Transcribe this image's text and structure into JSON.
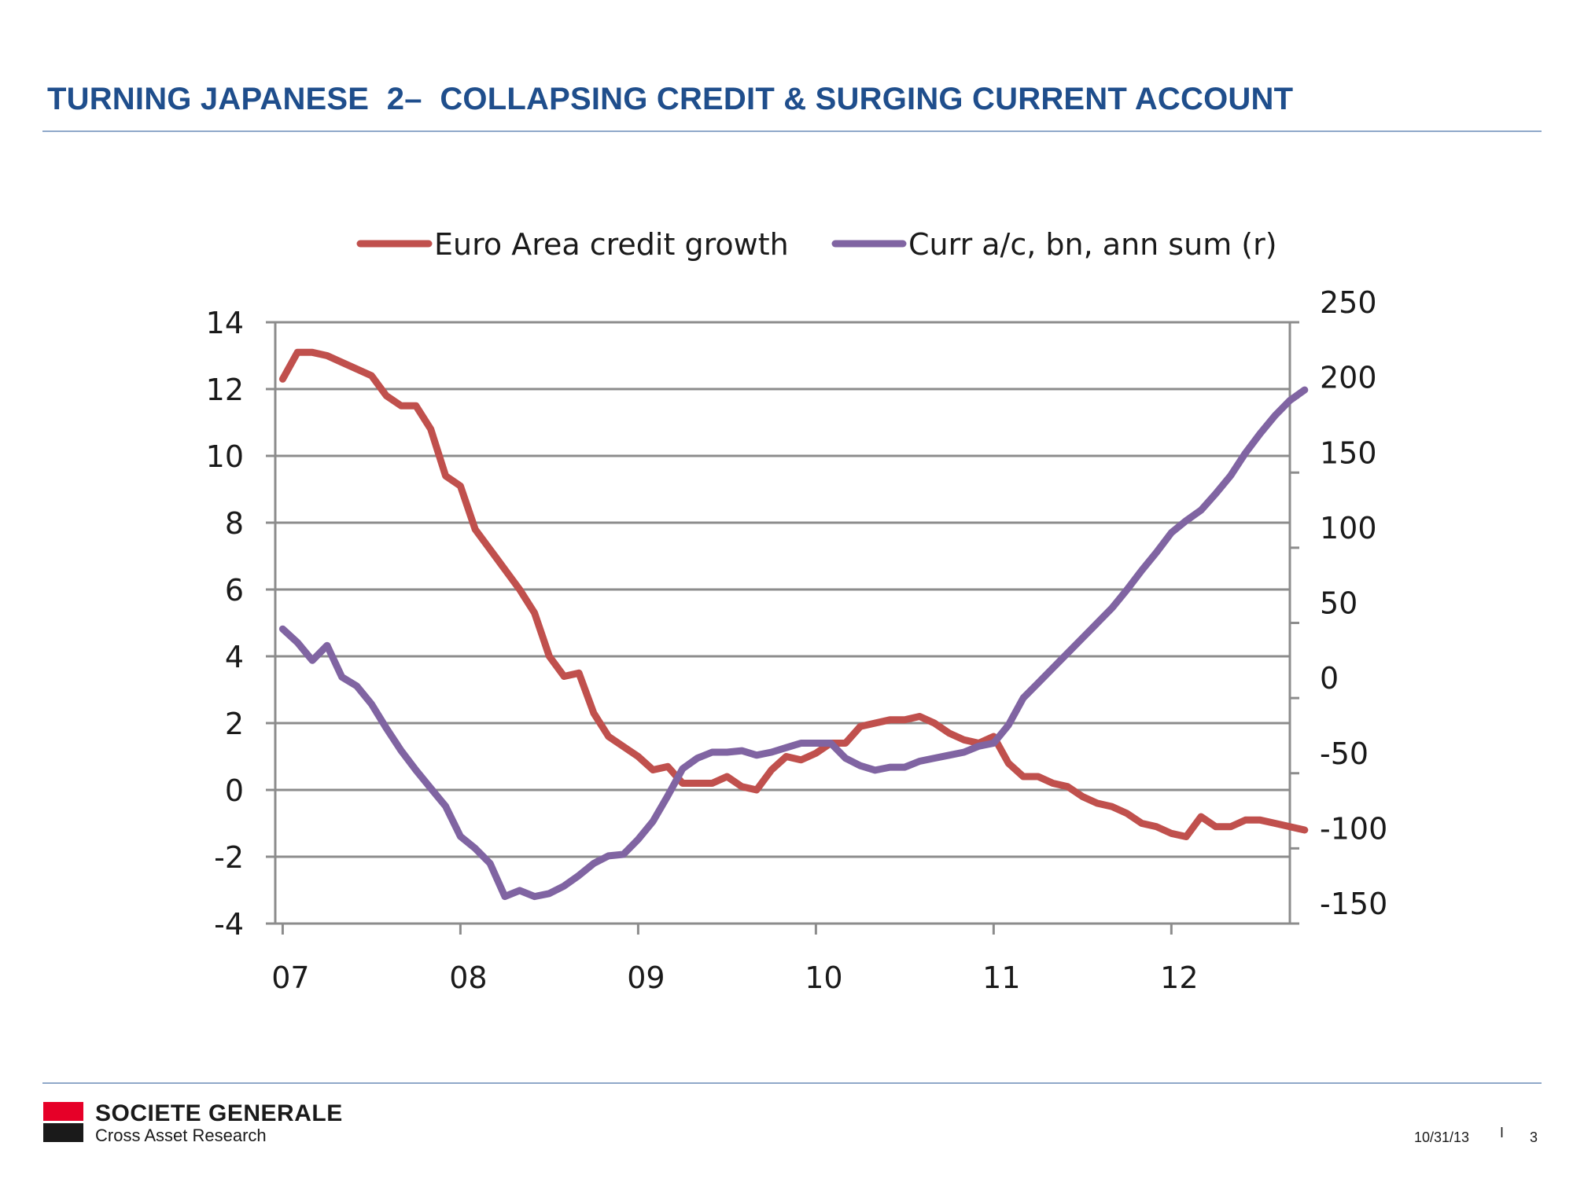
{
  "slide": {
    "title": "TURNING JAPANESE  2–  COLLAPSING CREDIT & SURGING CURRENT ACCOUNT",
    "date": "10/31/13",
    "separator": "I",
    "page_number": "3"
  },
  "brand": {
    "company": "SOCIETE GENERALE",
    "division": "Cross Asset Research",
    "logo_red": "#e60028",
    "logo_black": "#1a1a1a",
    "accent": "#1f4e8c"
  },
  "chart_data": {
    "type": "line",
    "title": "",
    "legend_position": "top",
    "grid": true,
    "x_ticks": [
      "07",
      "08",
      "09",
      "10",
      "11",
      "12"
    ],
    "x_tick_positions": [
      0,
      12,
      24,
      36,
      48,
      60
    ],
    "xlim": [
      -0.5,
      68
    ],
    "left_axis": {
      "ylim": [
        -4,
        14
      ],
      "ticks": [
        -4,
        -2,
        0,
        2,
        4,
        6,
        8,
        10,
        12,
        14
      ],
      "tick_labels": [
        "-4",
        "-2",
        "0",
        "2",
        "4",
        "6",
        "8",
        "10",
        "12",
        "14"
      ]
    },
    "right_axis": {
      "ylim": [
        -150,
        250
      ],
      "ticks": [
        -150,
        -100,
        -50,
        0,
        50,
        100,
        150,
        200,
        250
      ],
      "tick_labels": [
        "-150",
        "-100",
        "-50",
        "0",
        "50",
        "100",
        "150",
        "200",
        "250"
      ]
    },
    "series": [
      {
        "name": "Euro Area credit growth",
        "axis": "left",
        "color": "#c0504d",
        "x_start": 0,
        "values": [
          12.3,
          13.1,
          13.1,
          13.0,
          12.8,
          12.6,
          12.4,
          11.8,
          11.5,
          11.5,
          10.8,
          9.4,
          9.1,
          7.8,
          7.2,
          6.6,
          6.0,
          5.3,
          4.0,
          3.4,
          3.5,
          2.3,
          1.6,
          1.3,
          1.0,
          0.6,
          0.7,
          0.2,
          0.2,
          0.2,
          0.4,
          0.1,
          0.0,
          0.6,
          1.0,
          0.9,
          1.1,
          1.4,
          1.4,
          1.9,
          2.0,
          2.1,
          2.1,
          2.2,
          2.0,
          1.7,
          1.5,
          1.4,
          1.6,
          0.8,
          0.4,
          0.4,
          0.2,
          0.1,
          -0.2,
          -0.4,
          -0.5,
          -0.7,
          -1.0,
          -1.1,
          -1.3,
          -1.4,
          -0.8,
          -1.1,
          -1.1,
          -0.9,
          -0.9,
          -1.0,
          -1.1,
          -1.2
        ]
      },
      {
        "name": "Curr a/c, bn, ann sum (r)",
        "axis": "right",
        "color": "#8064a2",
        "x_start": 0,
        "values": [
          46,
          37,
          25,
          35,
          14,
          8,
          -4,
          -20,
          -35,
          -48,
          -60,
          -72,
          -92,
          -100,
          -110,
          -132,
          -128,
          -132,
          -130,
          -125,
          -118,
          -110,
          -105,
          -104,
          -94,
          -82,
          -65,
          -47,
          -40,
          -36,
          -36,
          -35,
          -38,
          -36,
          -33,
          -30,
          -30,
          -30,
          -40,
          -45,
          -48,
          -46,
          -46,
          -42,
          -40,
          -38,
          -36,
          -32,
          -30,
          -18,
          0,
          10,
          20,
          30,
          40,
          50,
          60,
          72,
          85,
          97,
          110,
          118,
          125,
          136,
          148,
          163,
          176,
          188,
          198,
          205
        ]
      }
    ]
  }
}
